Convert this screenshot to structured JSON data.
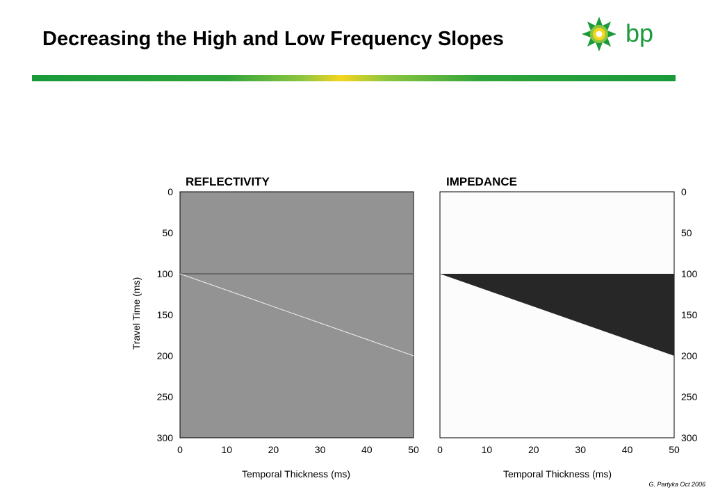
{
  "slide": {
    "title": "Decreasing the High and Low Frequency Slopes",
    "logo_text": "bp",
    "footer": "G. Partyka Oct 2006"
  },
  "colors": {
    "reflectivity_background": "#939393",
    "reflectivity_event": "#5a5a5a",
    "reflectivity_wedge": "#f0f0f0",
    "impedance_background": "#fcfcfc",
    "impedance_wedge": "#272727",
    "bar_green": "#1a9a3a",
    "bar_yellow": "#f5d51e",
    "logo_green": "#1a9a3a",
    "logo_yellow": "#f5d51e"
  },
  "chart_data": [
    {
      "type": "line",
      "title": "REFLECTIVITY",
      "xlabel": "Temporal Thickness (ms)",
      "ylabel": "Travel Time (ms)",
      "xlim": [
        0,
        50
      ],
      "ylim": [
        300,
        0
      ],
      "xticks": [
        0,
        10,
        20,
        30,
        40,
        50
      ],
      "yticks": [
        0,
        50,
        100,
        150,
        200,
        250,
        300
      ],
      "y_axis_side": "left",
      "background": "#939393",
      "series": [
        {
          "x": [
            0,
            50
          ],
          "y": [
            100,
            100
          ],
          "color": "#5a5a5a"
        },
        {
          "x": [
            0,
            50
          ],
          "y": [
            100,
            200
          ],
          "color": "#f0f0f0"
        }
      ]
    },
    {
      "type": "area",
      "title": "IMPEDANCE",
      "xlabel": "Temporal Thickness (ms)",
      "ylabel": "",
      "xlim": [
        0,
        50
      ],
      "ylim": [
        300,
        0
      ],
      "xticks": [
        0,
        10,
        20,
        30,
        40,
        50
      ],
      "yticks": [
        0,
        50,
        100,
        150,
        200,
        250,
        300
      ],
      "y_axis_side": "right",
      "background": "#fcfcfc",
      "series": [
        {
          "x": [
            0,
            50
          ],
          "y_top": [
            100,
            100
          ],
          "y_bottom": [
            100,
            200
          ],
          "color": "#272727"
        }
      ]
    }
  ]
}
